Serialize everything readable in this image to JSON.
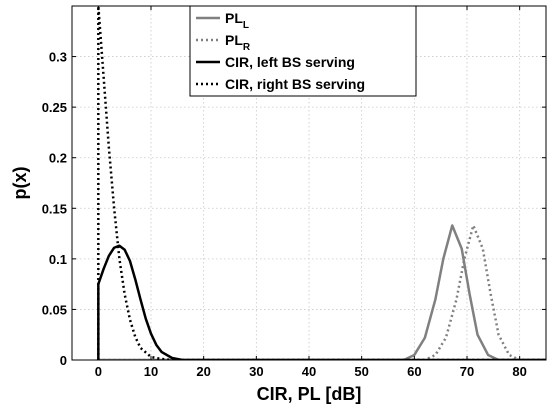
{
  "chart_data": {
    "type": "line",
    "xlabel": "CIR, PL [dB]",
    "ylabel": "p(x)",
    "xlim": [
      -5,
      85
    ],
    "ylim": [
      0,
      0.35
    ],
    "x_ticks": [
      0,
      10,
      20,
      30,
      40,
      50,
      60,
      70,
      80
    ],
    "y_ticks": [
      0,
      0.05,
      0.1,
      0.15,
      0.2,
      0.25,
      0.3
    ],
    "y_tick_labels": [
      "0",
      "0.05",
      "0.1",
      "0.15",
      "0.2",
      "0.25",
      "0.3"
    ],
    "grid": true,
    "legend_position": "top-right",
    "series": [
      {
        "name": "PL",
        "name_sub": "L",
        "color": "#808080",
        "style": "solid",
        "points": [
          [
            0,
            0
          ],
          [
            58,
            0
          ],
          [
            60,
            0.005
          ],
          [
            62,
            0.022
          ],
          [
            64,
            0.06
          ],
          [
            65.5,
            0.1
          ],
          [
            67.2,
            0.133
          ],
          [
            69,
            0.11
          ],
          [
            70.5,
            0.065
          ],
          [
            72,
            0.025
          ],
          [
            74,
            0.005
          ],
          [
            76,
            0
          ],
          [
            85,
            0
          ]
        ]
      },
      {
        "name": "PL",
        "name_sub": "R",
        "color": "#808080",
        "style": "dotted",
        "points": [
          [
            0,
            0
          ],
          [
            62,
            0
          ],
          [
            64,
            0.005
          ],
          [
            66,
            0.022
          ],
          [
            68,
            0.06
          ],
          [
            69.5,
            0.1
          ],
          [
            71.2,
            0.133
          ],
          [
            73,
            0.11
          ],
          [
            74.5,
            0.065
          ],
          [
            76,
            0.025
          ],
          [
            78,
            0.005
          ],
          [
            80,
            0
          ],
          [
            85,
            0
          ]
        ]
      },
      {
        "name": "CIR, left BS serving",
        "color": "#000000",
        "style": "solid",
        "points": [
          [
            0,
            0
          ],
          [
            0,
            0.075
          ],
          [
            1,
            0.09
          ],
          [
            2,
            0.103
          ],
          [
            3,
            0.111
          ],
          [
            4,
            0.113
          ],
          [
            5,
            0.109
          ],
          [
            6,
            0.098
          ],
          [
            7,
            0.08
          ],
          [
            8,
            0.06
          ],
          [
            9,
            0.041
          ],
          [
            10,
            0.026
          ],
          [
            11,
            0.015
          ],
          [
            12,
            0.008
          ],
          [
            14,
            0.002
          ],
          [
            16,
            0
          ],
          [
            85,
            0
          ]
        ]
      },
      {
        "name": "CIR, right BS serving",
        "color": "#000000",
        "style": "dotted",
        "points": [
          [
            0,
            0
          ],
          [
            0,
            0.35
          ],
          [
            1,
            0.28
          ],
          [
            2,
            0.21
          ],
          [
            3,
            0.15
          ],
          [
            4,
            0.1
          ],
          [
            5,
            0.065
          ],
          [
            6,
            0.04
          ],
          [
            7,
            0.023
          ],
          [
            8,
            0.012
          ],
          [
            10,
            0.003
          ],
          [
            12,
            0.001
          ],
          [
            14,
            0
          ],
          [
            85,
            0
          ]
        ]
      }
    ]
  }
}
